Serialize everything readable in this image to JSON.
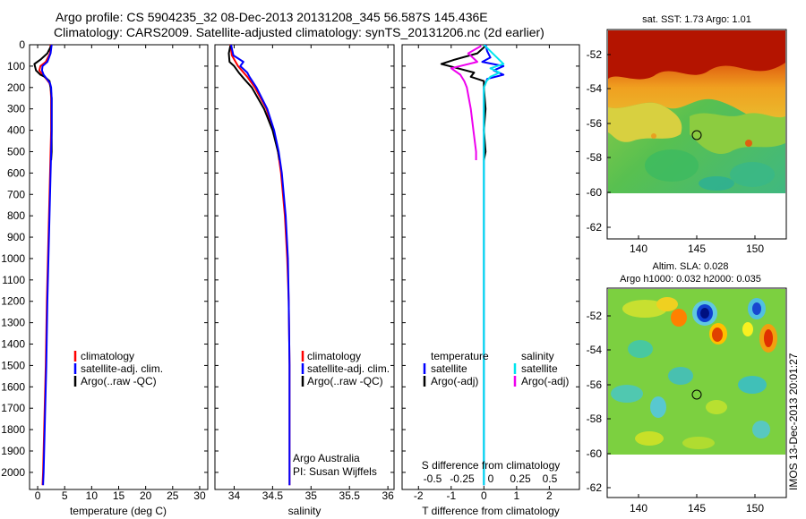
{
  "header": {
    "line1": "Argo profile: CS 5904235_32 08-Dec-2013 20131208_345 56.587S 145.436E",
    "line2": "Climatology: CARS2009. Satellite-adjusted climatology: synTS_20131206.nc (2d earlier)"
  },
  "colors": {
    "climatology": "#ff0000",
    "satellite": "#0000ff",
    "argo": "#000000",
    "sat_salinity": "#00e5ee",
    "argo_adj_salinity": "#ee00ee"
  },
  "chart_data": [
    {
      "id": "temperature",
      "type": "line",
      "xlabel": "temperature (deg C)",
      "ylabel": "",
      "xlim": [
        -1.5,
        31.5
      ],
      "ylim": [
        2080,
        0
      ],
      "xticks": [
        0,
        5,
        10,
        15,
        20,
        25,
        30
      ],
      "yticks": [
        0,
        100,
        200,
        300,
        400,
        500,
        600,
        700,
        800,
        900,
        1000,
        1100,
        1200,
        1300,
        1400,
        1500,
        1600,
        1700,
        1800,
        1900,
        2000
      ],
      "legend": [
        "climatology",
        "satellite-adj. clim.",
        "Argo(..raw -QC)"
      ],
      "legend_position": "center-right",
      "series": [
        {
          "name": "climatology",
          "depth": [
            0,
            40,
            80,
            100,
            120,
            140,
            160,
            180,
            200,
            250,
            300,
            400,
            500,
            600,
            800,
            1000,
            1200,
            1500,
            1800,
            2000,
            2060
          ],
          "values": [
            2.4,
            2.3,
            1.5,
            0.5,
            0.3,
            0.9,
            1.6,
            2.2,
            2.4,
            2.5,
            2.5,
            2.5,
            2.4,
            2.3,
            2.1,
            1.9,
            1.7,
            1.5,
            1.2,
            1.0,
            0.9
          ]
        },
        {
          "name": "satellite-adj. clim.",
          "depth": [
            0,
            40,
            80,
            100,
            120,
            140,
            160,
            180,
            200,
            250,
            300,
            400,
            500,
            600,
            800,
            1000,
            1200,
            1500,
            1800,
            2000,
            2060
          ],
          "values": [
            2.6,
            2.4,
            1.8,
            0.9,
            0.8,
            1.1,
            1.7,
            2.3,
            2.5,
            2.6,
            2.6,
            2.6,
            2.5,
            2.4,
            2.2,
            2.0,
            1.8,
            1.6,
            1.3,
            1.1,
            1.0
          ]
        },
        {
          "name": "Argo(..raw -QC)",
          "depth": [
            5,
            40,
            70,
            90,
            100,
            120,
            140,
            150,
            170,
            200,
            250,
            300,
            400,
            500,
            540
          ],
          "values": [
            2.5,
            1.8,
            0.5,
            -0.6,
            -0.5,
            -0.3,
            0.5,
            1.3,
            2.2,
            2.4,
            2.6,
            2.6,
            2.6,
            2.6,
            2.5
          ]
        }
      ]
    },
    {
      "id": "salinity",
      "type": "line",
      "xlabel": "salinity",
      "ylabel": "",
      "xlim": [
        33.75,
        36.08
      ],
      "ylim": [
        2080,
        0
      ],
      "xticks": [
        34,
        34.5,
        35,
        35.5,
        36
      ],
      "legend": [
        "climatology",
        "satellite-adj. clim.",
        "Argo(..raw -QC)"
      ],
      "legend_position": "center-right",
      "annotations": [
        "Argo Australia",
        "PI: Susan Wijffels"
      ],
      "series": [
        {
          "name": "climatology",
          "depth": [
            0,
            50,
            100,
            150,
            200,
            300,
            400,
            500,
            600,
            800,
            1000,
            1200,
            1500,
            1800,
            2060
          ],
          "values": [
            33.95,
            33.97,
            34.05,
            34.17,
            34.27,
            34.42,
            34.51,
            34.57,
            34.61,
            34.66,
            34.69,
            34.71,
            34.72,
            34.72,
            34.72
          ]
        },
        {
          "name": "satellite-adj. clim.",
          "depth": [
            0,
            50,
            80,
            100,
            130,
            150,
            200,
            300,
            400,
            500,
            600,
            800,
            1000,
            1200,
            1500,
            1800,
            2060
          ],
          "values": [
            33.96,
            33.99,
            34.12,
            34.08,
            34.17,
            34.2,
            34.29,
            34.43,
            34.52,
            34.58,
            34.62,
            34.67,
            34.7,
            34.71,
            34.72,
            34.72,
            34.72
          ]
        },
        {
          "name": "Argo(..raw -QC)",
          "depth": [
            5,
            40,
            80,
            100,
            130,
            160,
            200,
            300,
            400,
            500,
            540
          ],
          "values": [
            33.95,
            33.93,
            33.94,
            34.0,
            34.06,
            34.13,
            34.23,
            34.39,
            34.5,
            34.57,
            34.59
          ]
        }
      ]
    },
    {
      "id": "difference",
      "type": "line",
      "xlabel": "T difference from climatology",
      "x2label": "S difference from climatology",
      "xlim": [
        -2.5,
        2.92
      ],
      "ylim": [
        2080,
        0
      ],
      "xticks": [
        -2,
        -1,
        0,
        1,
        2
      ],
      "x2ticks": [
        "-0.5",
        "-0.25",
        "0",
        "0.25",
        "0.5"
      ],
      "legend_headers": [
        "temperature",
        "salinity"
      ],
      "legend": [
        "satellite",
        "Argo(-adj)",
        "satellite",
        "Argo(-adj)"
      ],
      "legend_position": "center-right",
      "series": [
        {
          "name": "satellite",
          "group": "temperature",
          "depth": [
            0,
            30,
            60,
            80,
            100,
            120,
            140,
            160,
            180,
            200,
            300,
            400,
            500,
            700,
            1000,
            1500,
            2000,
            2060
          ],
          "values": [
            0.05,
            0.1,
            0.2,
            -0.05,
            0.6,
            0.3,
            0.6,
            0.1,
            0.05,
            0.0,
            0.0,
            0.0,
            0.0,
            0.0,
            0.0,
            0.0,
            0.0,
            0.0
          ]
        },
        {
          "name": "Argo(-adj)",
          "group": "temperature",
          "depth": [
            5,
            40,
            70,
            90,
            110,
            130,
            150,
            170,
            200,
            300,
            400,
            500,
            540
          ],
          "values": [
            0.05,
            -0.2,
            -0.9,
            -1.3,
            -0.8,
            -0.3,
            -0.4,
            0.0,
            0.0,
            0.05,
            0.0,
            0.05,
            0.0
          ]
        },
        {
          "name": "satellite",
          "group": "salinity",
          "depth": [
            0,
            30,
            60,
            90,
            110,
            130,
            150,
            170,
            200,
            300,
            500,
            1000,
            1500,
            2000,
            2060
          ],
          "values": [
            0.0,
            0.05,
            0.1,
            0.15,
            0.05,
            0.12,
            0.05,
            0.02,
            0.0,
            0.0,
            0.0,
            0.0,
            0.0,
            0.0,
            0.0
          ]
        },
        {
          "name": "Argo(-adj)",
          "group": "salinity",
          "depth": [
            5,
            40,
            80,
            110,
            140,
            170,
            200,
            300,
            400,
            500,
            540
          ],
          "values": [
            -0.02,
            -0.12,
            -0.05,
            -0.25,
            -0.18,
            -0.15,
            -0.13,
            -0.1,
            -0.08,
            -0.06,
            -0.06
          ]
        }
      ]
    }
  ],
  "maps": [
    {
      "id": "sst-map",
      "title": "sat. SST: 1.73 Argo: 1.01",
      "xticks": [
        "140",
        "145",
        "150"
      ],
      "yticks": [
        "-52",
        "-54",
        "-56",
        "-58",
        "-60",
        "-62"
      ],
      "marker": {
        "lon": 145.436,
        "lat": -56.587
      }
    },
    {
      "id": "sla-map",
      "title_line1": "Altim. SLA: 0.028",
      "title_line2": "Argo h1000: 0.032 h2000: 0.035",
      "xticks": [
        "140",
        "145",
        "150"
      ],
      "yticks": [
        "-52",
        "-54",
        "-56",
        "-58",
        "-60",
        "-62"
      ],
      "marker": {
        "lon": 145.436,
        "lat": -56.587
      }
    }
  ],
  "footer_stamp": "IMOS 13-Dec-2013 20:01:27"
}
